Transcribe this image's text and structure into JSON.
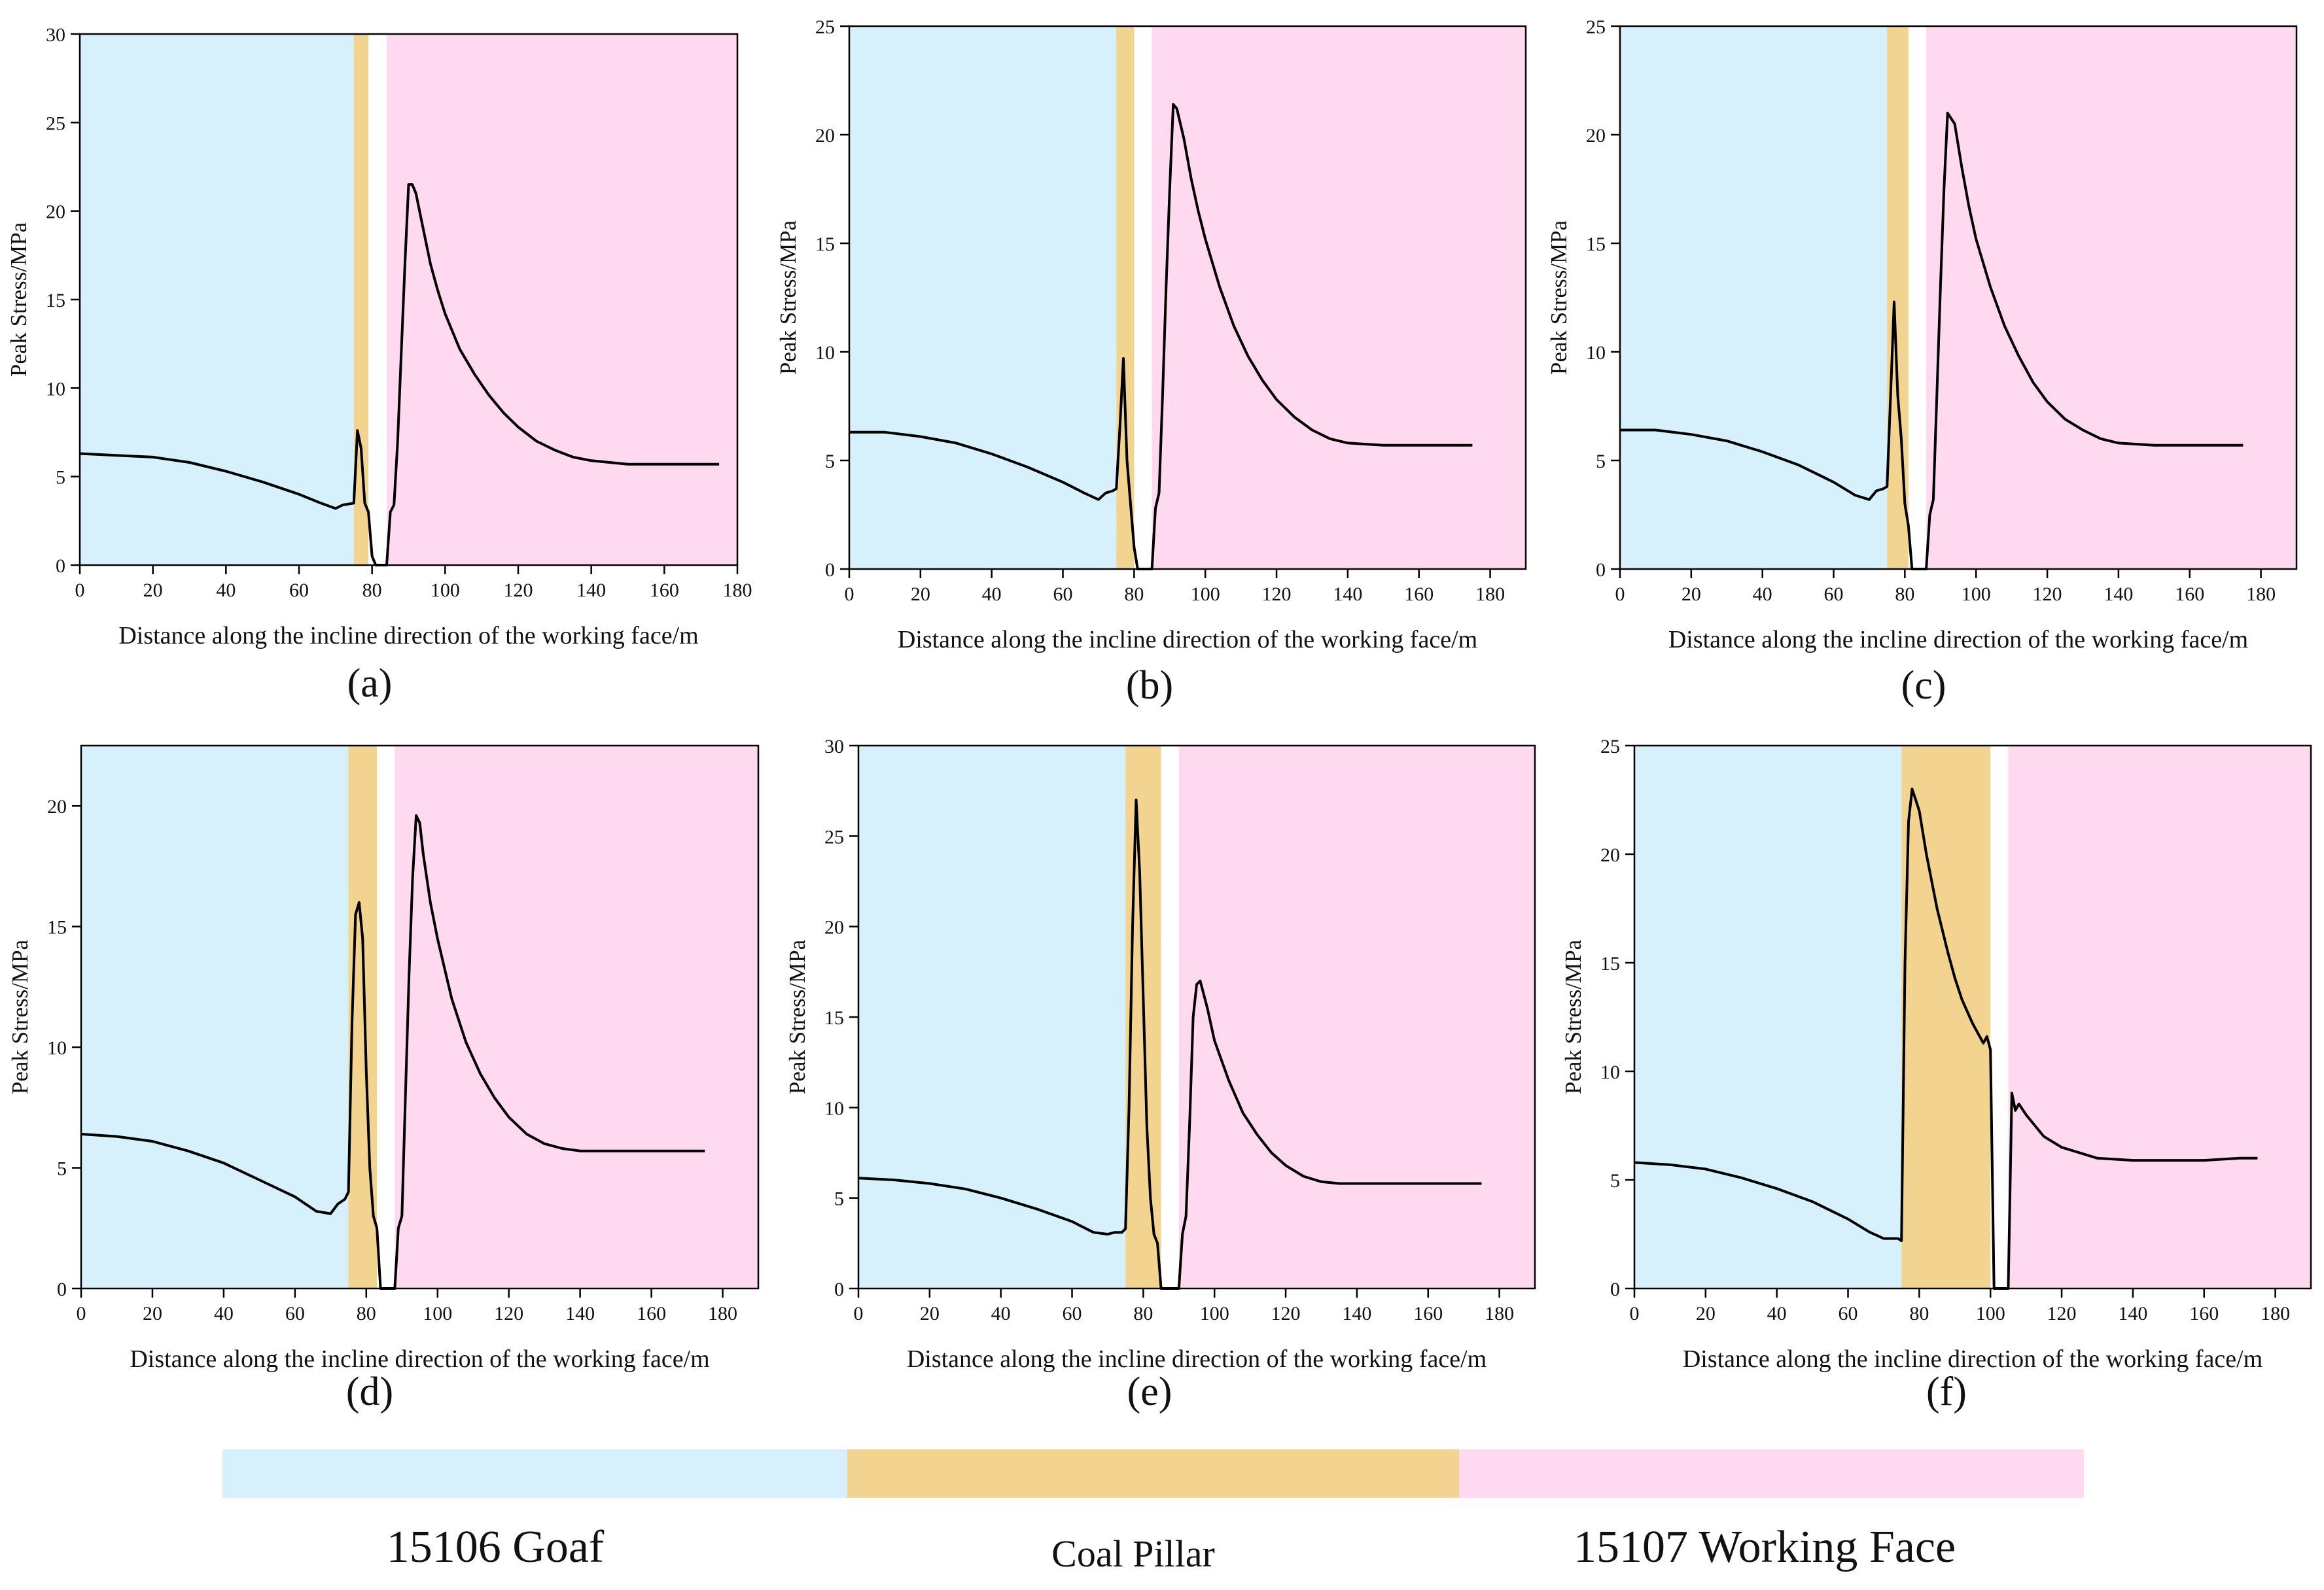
{
  "colors": {
    "goaf": "#d6f1fb",
    "pillar": "#f2d490",
    "face": "#ffd9f0",
    "curve": "#000000",
    "axis": "#000000"
  },
  "legend": {
    "goaf_label": "15106 Goaf",
    "pillar_label": "Coal Pillar",
    "face_label": "15107 Working Face"
  },
  "chart_data": [
    {
      "type": "line",
      "panel_label": "(a)",
      "xlabel": "Distance along the incline direction of the working face/m",
      "ylabel": "Peak Stress/MPa",
      "xlim": [
        0,
        180
      ],
      "ylim": [
        0,
        30
      ],
      "xticks": [
        0,
        20,
        40,
        60,
        80,
        100,
        120,
        140,
        160,
        180
      ],
      "yticks": [
        0,
        5,
        10,
        15,
        20,
        25,
        30
      ],
      "regions": {
        "goaf": [
          0,
          75
        ],
        "pillar": [
          75,
          79
        ],
        "gap": [
          79,
          84
        ],
        "face": [
          84,
          180
        ]
      },
      "series": [
        {
          "name": "Peak Stress",
          "x": [
            0,
            10,
            20,
            30,
            40,
            50,
            60,
            66,
            70,
            72,
            75,
            76,
            77,
            78,
            79,
            80,
            81,
            82,
            83,
            84,
            85,
            86,
            87,
            88,
            89,
            90,
            91,
            92,
            94,
            96,
            98,
            100,
            104,
            108,
            112,
            116,
            120,
            125,
            130,
            135,
            140,
            150,
            160,
            170,
            175
          ],
          "y": [
            6.3,
            6.2,
            6.1,
            5.8,
            5.3,
            4.7,
            4.0,
            3.5,
            3.2,
            3.4,
            3.5,
            7.6,
            6.6,
            3.5,
            3.0,
            0.5,
            0,
            0,
            0,
            0,
            3.0,
            3.4,
            7.0,
            12.0,
            17.0,
            21.5,
            21.5,
            21.0,
            19.0,
            17.0,
            15.5,
            14.2,
            12.2,
            10.8,
            9.6,
            8.6,
            7.8,
            7.0,
            6.5,
            6.1,
            5.9,
            5.7,
            5.7,
            5.7,
            5.7
          ]
        }
      ]
    },
    {
      "type": "line",
      "panel_label": "(b)",
      "xlabel": "Distance along the incline direction of the working face/m",
      "ylabel": "Peak Stress/MPa",
      "xlim": [
        0,
        190
      ],
      "ylim": [
        0,
        25
      ],
      "xticks": [
        0,
        20,
        40,
        60,
        80,
        100,
        120,
        140,
        160,
        180
      ],
      "yticks": [
        0,
        5,
        10,
        15,
        20,
        25
      ],
      "regions": {
        "goaf": [
          0,
          75
        ],
        "pillar": [
          75,
          80
        ],
        "gap": [
          80,
          85
        ],
        "face": [
          85,
          190
        ]
      },
      "series": [
        {
          "name": "Peak Stress",
          "x": [
            0,
            10,
            20,
            30,
            40,
            50,
            60,
            66,
            70,
            72,
            74,
            75,
            76,
            77,
            78,
            79,
            80,
            81,
            82,
            83,
            84,
            85,
            86,
            87,
            88,
            89,
            90,
            91,
            92,
            94,
            96,
            98,
            100,
            104,
            108,
            112,
            116,
            120,
            125,
            130,
            135,
            140,
            150,
            160,
            170,
            175
          ],
          "y": [
            6.3,
            6.3,
            6.1,
            5.8,
            5.3,
            4.7,
            4.0,
            3.5,
            3.2,
            3.5,
            3.6,
            3.7,
            6.5,
            9.7,
            5.0,
            3.0,
            1.0,
            0,
            0,
            0,
            0,
            0,
            2.8,
            3.5,
            8.0,
            13.0,
            17.5,
            21.4,
            21.2,
            19.8,
            18.0,
            16.5,
            15.2,
            13.0,
            11.2,
            9.8,
            8.7,
            7.8,
            7.0,
            6.4,
            6.0,
            5.8,
            5.7,
            5.7,
            5.7,
            5.7
          ]
        }
      ]
    },
    {
      "type": "line",
      "panel_label": "(c)",
      "xlabel": "Distance along the incline direction of the working face/m",
      "ylabel": "Peak Stress/MPa",
      "xlim": [
        0,
        190
      ],
      "ylim": [
        0,
        25
      ],
      "xticks": [
        0,
        20,
        40,
        60,
        80,
        100,
        120,
        140,
        160,
        180
      ],
      "yticks": [
        0,
        5,
        10,
        15,
        20,
        25
      ],
      "regions": {
        "goaf": [
          0,
          75
        ],
        "pillar": [
          75,
          81
        ],
        "gap": [
          81,
          86
        ],
        "face": [
          86,
          190
        ]
      },
      "series": [
        {
          "name": "Peak Stress",
          "x": [
            0,
            10,
            20,
            30,
            40,
            50,
            60,
            66,
            70,
            72,
            74,
            75,
            76,
            77,
            78,
            79,
            80,
            81,
            82,
            83,
            84,
            85,
            86,
            87,
            88,
            89,
            90,
            91,
            92,
            94,
            96,
            98,
            100,
            104,
            108,
            112,
            116,
            120,
            125,
            130,
            135,
            140,
            150,
            160,
            170,
            175
          ],
          "y": [
            6.4,
            6.4,
            6.2,
            5.9,
            5.4,
            4.8,
            4.0,
            3.4,
            3.2,
            3.6,
            3.7,
            3.8,
            8.0,
            12.3,
            8.0,
            6.0,
            3.0,
            2.0,
            0,
            0,
            0,
            0,
            0,
            2.5,
            3.2,
            8.0,
            13.0,
            17.5,
            21.0,
            20.5,
            18.5,
            16.7,
            15.2,
            13.0,
            11.2,
            9.8,
            8.6,
            7.7,
            6.9,
            6.4,
            6.0,
            5.8,
            5.7,
            5.7,
            5.7,
            5.7
          ]
        }
      ]
    },
    {
      "type": "line",
      "panel_label": "(d)",
      "xlabel": "Distance along the incline direction of the working face/m",
      "ylabel": "Peak Stress/MPa",
      "xlim": [
        0,
        190
      ],
      "ylim": [
        0,
        22.5
      ],
      "xticks": [
        0,
        20,
        40,
        60,
        80,
        100,
        120,
        140,
        160,
        180
      ],
      "yticks": [
        0,
        5,
        10,
        15,
        20
      ],
      "regions": {
        "goaf": [
          0,
          75
        ],
        "pillar": [
          75,
          83
        ],
        "gap": [
          83,
          88
        ],
        "face": [
          88,
          190
        ]
      },
      "series": [
        {
          "name": "Peak Stress",
          "x": [
            0,
            10,
            20,
            30,
            40,
            50,
            60,
            66,
            70,
            72,
            74,
            75,
            76,
            77,
            78,
            79,
            80,
            81,
            82,
            83,
            84,
            85,
            86,
            87,
            88,
            89,
            90,
            91,
            92,
            93,
            94,
            95,
            96,
            98,
            100,
            104,
            108,
            112,
            116,
            120,
            125,
            130,
            135,
            140,
            150,
            160,
            170,
            175
          ],
          "y": [
            6.4,
            6.3,
            6.1,
            5.7,
            5.2,
            4.5,
            3.8,
            3.2,
            3.1,
            3.5,
            3.7,
            4.0,
            11.0,
            15.5,
            16.0,
            14.5,
            9.0,
            5.0,
            3.0,
            2.5,
            0,
            0,
            0,
            0,
            0,
            2.5,
            3.0,
            8.0,
            13.0,
            17.0,
            19.6,
            19.3,
            18.0,
            16.0,
            14.5,
            12.0,
            10.2,
            8.9,
            7.9,
            7.1,
            6.4,
            6.0,
            5.8,
            5.7,
            5.7,
            5.7,
            5.7,
            5.7
          ]
        }
      ]
    },
    {
      "type": "line",
      "panel_label": "(e)",
      "xlabel": "Distance along the incline direction of the working face/m",
      "ylabel": "Peak Stress/MPa",
      "xlim": [
        0,
        190
      ],
      "ylim": [
        0,
        30
      ],
      "xticks": [
        0,
        20,
        40,
        60,
        80,
        100,
        120,
        140,
        160,
        180
      ],
      "yticks": [
        0,
        5,
        10,
        15,
        20,
        25,
        30
      ],
      "regions": {
        "goaf": [
          0,
          75
        ],
        "pillar": [
          75,
          85
        ],
        "gap": [
          85,
          90
        ],
        "face": [
          90,
          190
        ]
      },
      "series": [
        {
          "name": "Peak Stress",
          "x": [
            0,
            10,
            20,
            30,
            40,
            50,
            60,
            66,
            70,
            72,
            74,
            75,
            76,
            77,
            78,
            79,
            80,
            81,
            82,
            83,
            84,
            85,
            86,
            87,
            88,
            89,
            90,
            91,
            92,
            93,
            94,
            95,
            96,
            98,
            100,
            104,
            108,
            112,
            116,
            120,
            125,
            130,
            135,
            140,
            150,
            160,
            170,
            175
          ],
          "y": [
            6.1,
            6.0,
            5.8,
            5.5,
            5.0,
            4.4,
            3.7,
            3.1,
            3.0,
            3.1,
            3.1,
            3.3,
            10.0,
            20.0,
            27.0,
            23.0,
            16.0,
            9.0,
            5.0,
            3.0,
            2.5,
            0,
            0,
            0,
            0,
            0,
            0,
            3.0,
            4.0,
            9.0,
            15.0,
            16.8,
            17.0,
            15.5,
            13.7,
            11.5,
            9.7,
            8.5,
            7.5,
            6.8,
            6.2,
            5.9,
            5.8,
            5.8,
            5.8,
            5.8,
            5.8,
            5.8
          ]
        }
      ]
    },
    {
      "type": "line",
      "panel_label": "(f)",
      "xlabel": "Distance along the incline direction of the working face/m",
      "ylabel": "Peak Stress/MPa",
      "xlim": [
        0,
        190
      ],
      "ylim": [
        0,
        25
      ],
      "xticks": [
        0,
        20,
        40,
        60,
        80,
        100,
        120,
        140,
        160,
        180
      ],
      "yticks": [
        0,
        5,
        10,
        15,
        20,
        25
      ],
      "regions": {
        "goaf": [
          0,
          75
        ],
        "pillar": [
          75,
          100
        ],
        "gap": [
          100,
          105
        ],
        "face": [
          105,
          190
        ]
      },
      "series": [
        {
          "name": "Peak Stress",
          "x": [
            0,
            10,
            20,
            30,
            40,
            50,
            60,
            66,
            70,
            72,
            74,
            75,
            76,
            77,
            78,
            80,
            82,
            85,
            88,
            90,
            92,
            95,
            98,
            99,
            100,
            101,
            102,
            103,
            104,
            105,
            106,
            107,
            108,
            110,
            115,
            120,
            130,
            140,
            150,
            160,
            170,
            175
          ],
          "y": [
            5.8,
            5.7,
            5.5,
            5.1,
            4.6,
            4.0,
            3.2,
            2.6,
            2.3,
            2.3,
            2.3,
            2.2,
            15.0,
            21.5,
            23.0,
            22.0,
            20.0,
            17.5,
            15.5,
            14.3,
            13.3,
            12.2,
            11.3,
            11.6,
            11.0,
            0,
            0,
            0,
            0,
            0,
            9.0,
            8.2,
            8.5,
            8.0,
            7.0,
            6.5,
            6.0,
            5.9,
            5.9,
            5.9,
            6.0,
            6.0
          ]
        }
      ]
    }
  ]
}
